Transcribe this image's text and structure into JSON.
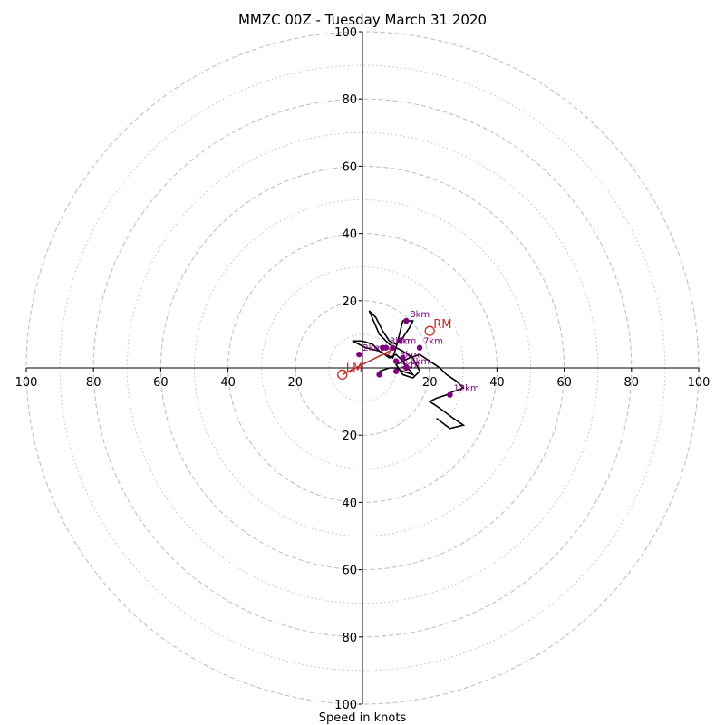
{
  "chart_data": {
    "type": "hodograph",
    "title": "MMZC 00Z - Tuesday March 31 2020",
    "xlabel": "Speed in knots",
    "ylabel": "",
    "xlim": [
      -100,
      100
    ],
    "ylim": [
      -100,
      100
    ],
    "ring_values": [
      20,
      40,
      60,
      80,
      100
    ],
    "minor_ring_values": [
      10,
      30,
      50,
      70,
      90
    ],
    "x_tick_labels": [
      "100",
      "80",
      "60",
      "40",
      "20",
      "20",
      "40",
      "60",
      "80",
      "100"
    ],
    "x_tick_values": [
      -100,
      -80,
      -60,
      -40,
      -20,
      20,
      40,
      60,
      80,
      100
    ],
    "y_tick_labels": [
      "100",
      "80",
      "60",
      "40",
      "20",
      "20",
      "40",
      "60",
      "80",
      "100"
    ],
    "y_tick_values": [
      100,
      80,
      60,
      40,
      20,
      -20,
      -40,
      -60,
      -80,
      -100
    ],
    "grid": true,
    "grid_color": "#c0c0c0",
    "hodograph_line": {
      "color": "#000000",
      "x": [
        5,
        8,
        10,
        12,
        15,
        12,
        10,
        8,
        5,
        3,
        0,
        -1,
        -3,
        1,
        5,
        7,
        9,
        10,
        12,
        14,
        15,
        14,
        12,
        10,
        8,
        6,
        4,
        2,
        5,
        8,
        12,
        15,
        17,
        15,
        12,
        10,
        12,
        14,
        17,
        20,
        23,
        25,
        28,
        30,
        27,
        25,
        22,
        20,
        23,
        27,
        30,
        26,
        22
      ],
      "y": [
        -1,
        0,
        0,
        -1,
        -2,
        2,
        4,
        3,
        5,
        7,
        8,
        8,
        8,
        6,
        5,
        4,
        3,
        6,
        14,
        14,
        14,
        12,
        9,
        7,
        8,
        11,
        15,
        17,
        10,
        7,
        5,
        3,
        -1,
        -3,
        -2,
        1,
        2,
        3,
        4,
        2,
        0,
        -2,
        -4,
        -6,
        -7,
        -8,
        -9,
        -10,
        -12,
        -15,
        -17,
        -18,
        -15
      ]
    },
    "height_markers": {
      "color": "#800080",
      "points": [
        {
          "label": "",
          "x": 5,
          "y": -2
        },
        {
          "label": "2km",
          "x": -1,
          "y": 4
        },
        {
          "label": "3km",
          "x": 7,
          "y": 6
        },
        {
          "label": "4km",
          "x": 9,
          "y": 6
        },
        {
          "label": "5km",
          "x": 10,
          "y": 2
        },
        {
          "label": "5km",
          "x": 10,
          "y": -1
        },
        {
          "label": "6km",
          "x": 13,
          "y": 0
        },
        {
          "label": "7km",
          "x": 17,
          "y": 6
        },
        {
          "label": "8km",
          "x": 13,
          "y": 14
        },
        {
          "label": "12km",
          "x": 26,
          "y": -8
        },
        {
          "label": "",
          "x": 12,
          "y": 3
        },
        {
          "label": "",
          "x": 6,
          "y": 6
        }
      ]
    },
    "storm_motion": {
      "color": "#c62828",
      "RM": {
        "label": "RM",
        "x": 20,
        "y": 11
      },
      "LM": {
        "label": "LM",
        "x": -6,
        "y": -2
      },
      "mean_vector": {
        "label": "",
        "x": 7,
        "y": 5
      },
      "shear_arrow": {
        "from": [
          -6,
          -2
        ],
        "to": [
          8,
          5
        ]
      }
    }
  }
}
